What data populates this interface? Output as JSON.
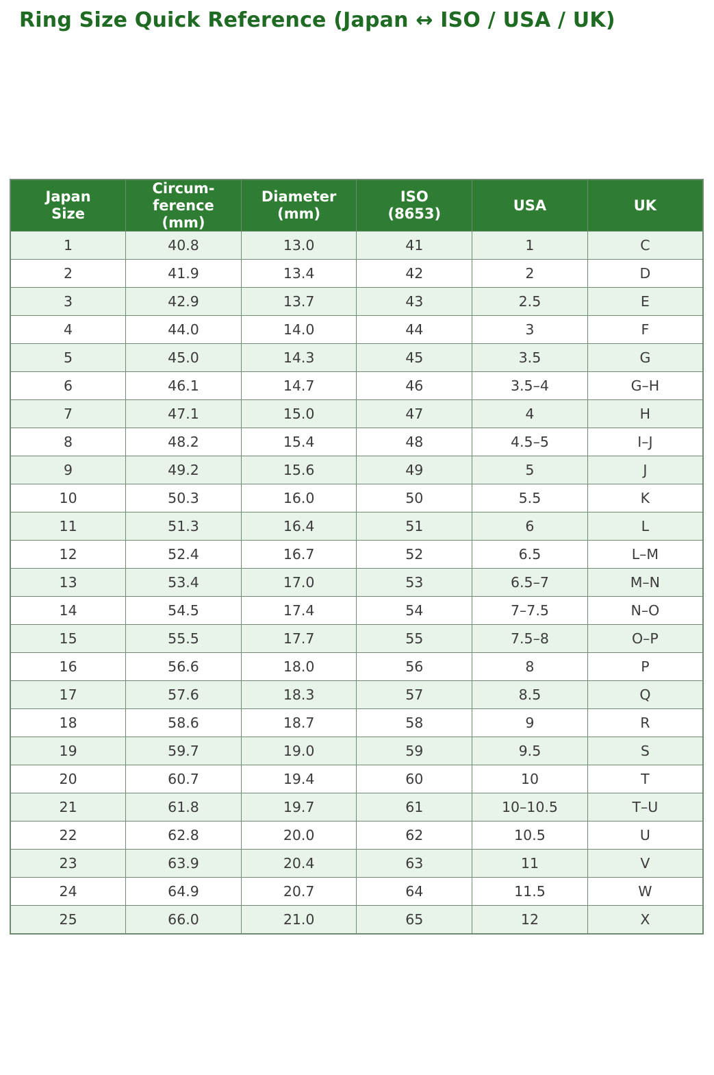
{
  "page": {
    "title": "Ring Size Quick Reference (Japan ↔ ISO / USA / UK)"
  },
  "colors": {
    "title_text": "#1f6b24",
    "header_bg": "#2e7d32",
    "header_text": "#ffffff",
    "row_stripe_bg": "#e8f3ea",
    "row_bg": "#ffffff",
    "border": "#6f8a72",
    "cell_text": "#3b3b3b"
  },
  "chart_data": {
    "type": "table",
    "title": "Ring Size Quick Reference (Japan ↔ ISO / USA / UK)",
    "columns": [
      "Japan\nSize",
      "Circum-\nference\n(mm)",
      "Diameter\n(mm)",
      "ISO\n(8653)",
      "USA",
      "UK"
    ],
    "column_names_plain": [
      "Japan Size",
      "Circumference (mm)",
      "Diameter (mm)",
      "ISO (8653)",
      "USA",
      "UK"
    ],
    "rows": [
      [
        "1",
        "40.8",
        "13.0",
        "41",
        "1",
        "C"
      ],
      [
        "2",
        "41.9",
        "13.4",
        "42",
        "2",
        "D"
      ],
      [
        "3",
        "42.9",
        "13.7",
        "43",
        "2.5",
        "E"
      ],
      [
        "4",
        "44.0",
        "14.0",
        "44",
        "3",
        "F"
      ],
      [
        "5",
        "45.0",
        "14.3",
        "45",
        "3.5",
        "G"
      ],
      [
        "6",
        "46.1",
        "14.7",
        "46",
        "3.5–4",
        "G–H"
      ],
      [
        "7",
        "47.1",
        "15.0",
        "47",
        "4",
        "H"
      ],
      [
        "8",
        "48.2",
        "15.4",
        "48",
        "4.5–5",
        "I–J"
      ],
      [
        "9",
        "49.2",
        "15.6",
        "49",
        "5",
        "J"
      ],
      [
        "10",
        "50.3",
        "16.0",
        "50",
        "5.5",
        "K"
      ],
      [
        "11",
        "51.3",
        "16.4",
        "51",
        "6",
        "L"
      ],
      [
        "12",
        "52.4",
        "16.7",
        "52",
        "6.5",
        "L–M"
      ],
      [
        "13",
        "53.4",
        "17.0",
        "53",
        "6.5–7",
        "M–N"
      ],
      [
        "14",
        "54.5",
        "17.4",
        "54",
        "7–7.5",
        "N–O"
      ],
      [
        "15",
        "55.5",
        "17.7",
        "55",
        "7.5–8",
        "O–P"
      ],
      [
        "16",
        "56.6",
        "18.0",
        "56",
        "8",
        "P"
      ],
      [
        "17",
        "57.6",
        "18.3",
        "57",
        "8.5",
        "Q"
      ],
      [
        "18",
        "58.6",
        "18.7",
        "58",
        "9",
        "R"
      ],
      [
        "19",
        "59.7",
        "19.0",
        "59",
        "9.5",
        "S"
      ],
      [
        "20",
        "60.7",
        "19.4",
        "60",
        "10",
        "T"
      ],
      [
        "21",
        "61.8",
        "19.7",
        "61",
        "10–10.5",
        "T–U"
      ],
      [
        "22",
        "62.8",
        "20.0",
        "62",
        "10.5",
        "U"
      ],
      [
        "23",
        "63.9",
        "20.4",
        "63",
        "11",
        "V"
      ],
      [
        "24",
        "64.9",
        "20.7",
        "64",
        "11.5",
        "W"
      ],
      [
        "25",
        "66.0",
        "21.0",
        "65",
        "12",
        "X"
      ]
    ]
  }
}
